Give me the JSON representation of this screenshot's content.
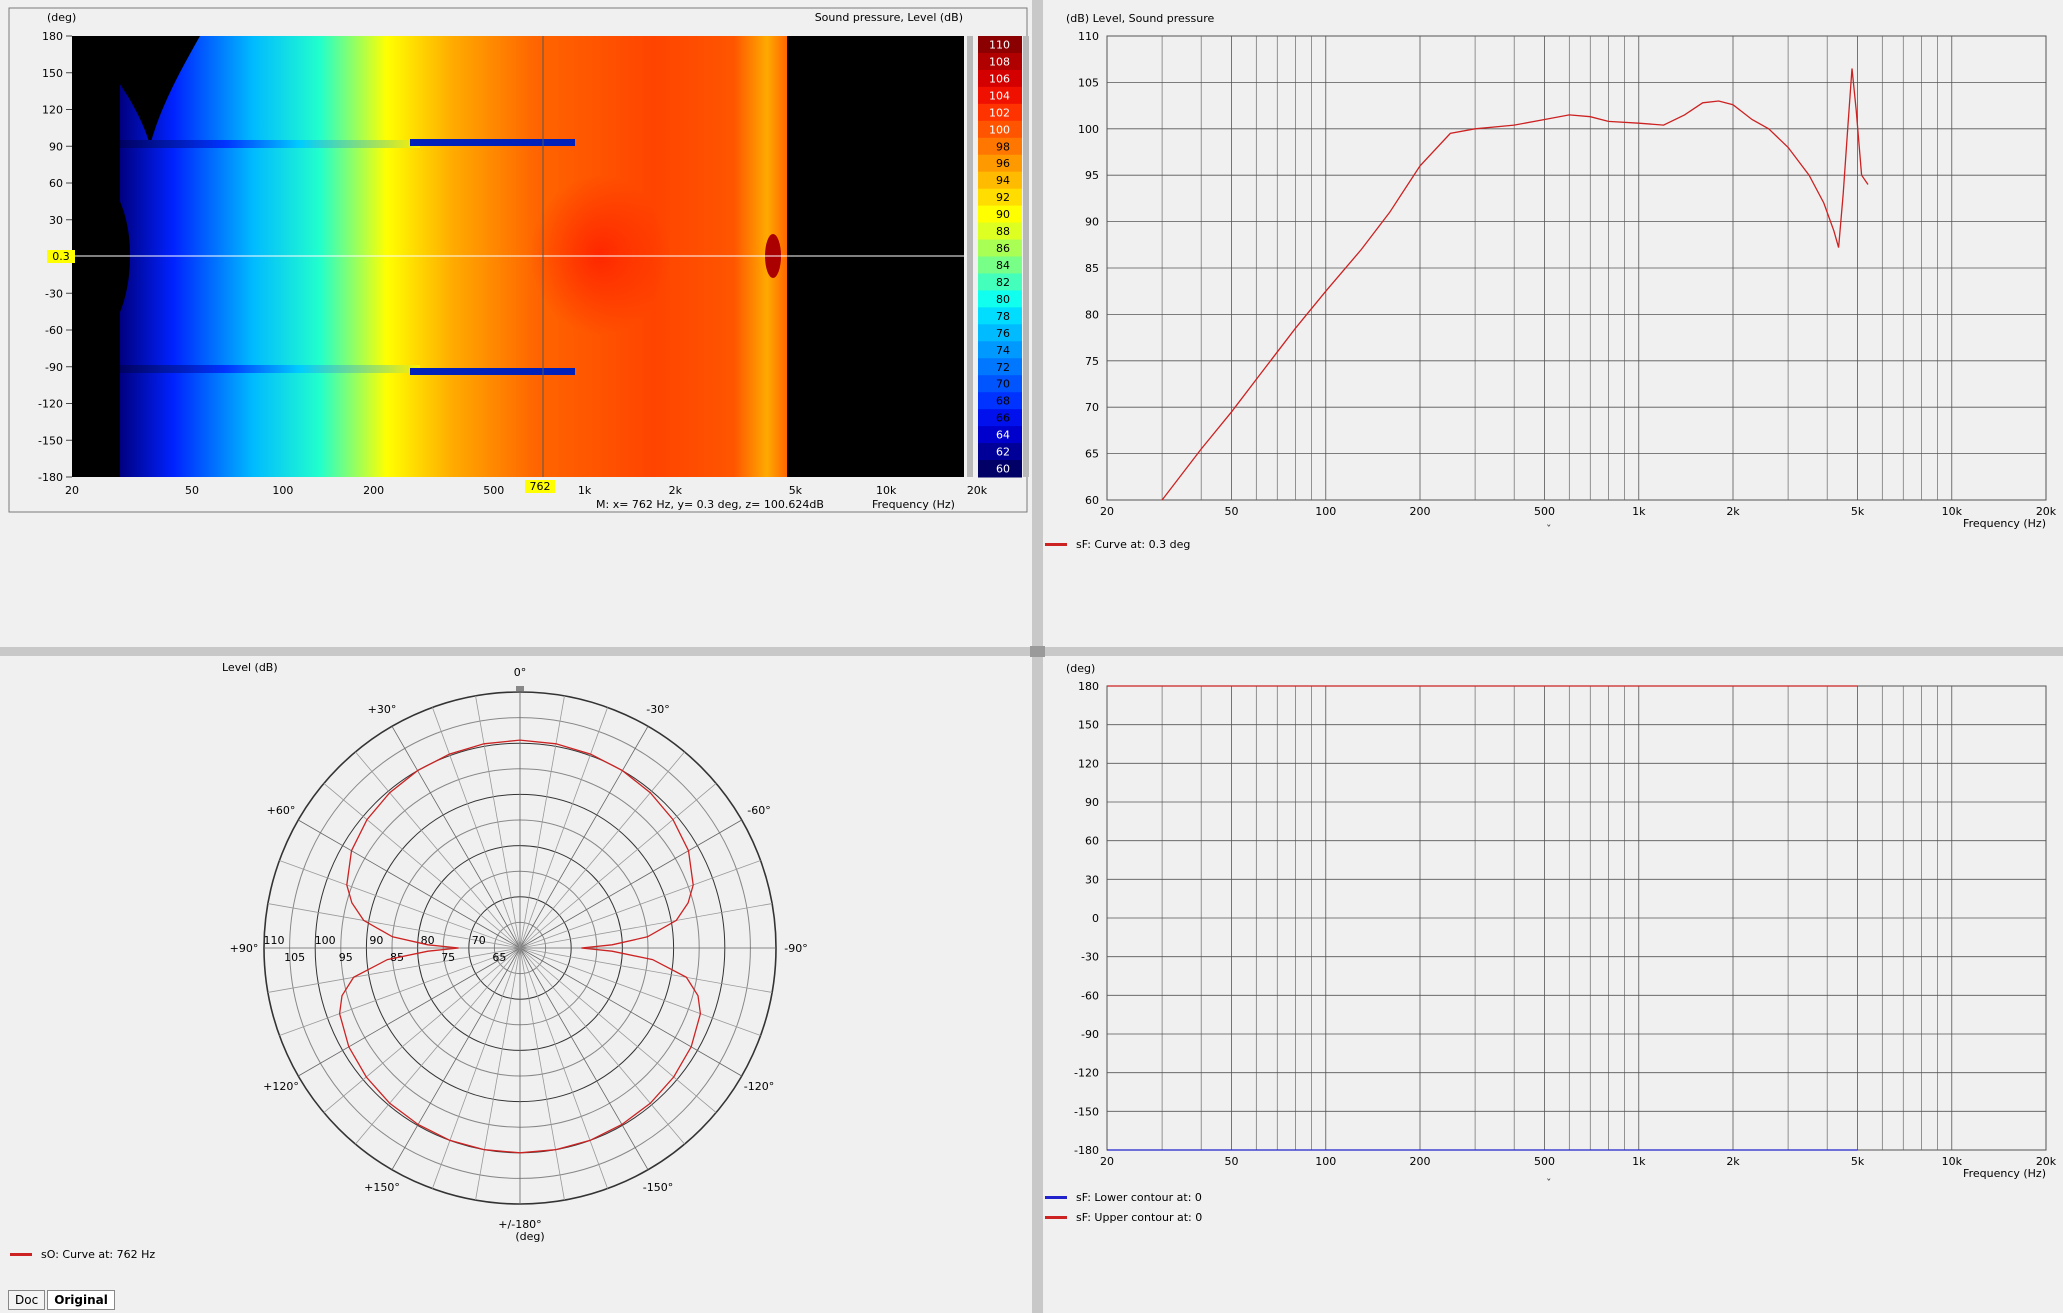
{
  "sonogram": {
    "ylabel": "(deg)",
    "title": "Sound pressure, Level  (dB)",
    "y_ticks": [
      "180",
      "150",
      "120",
      "90",
      "60",
      "30",
      "0",
      "-30",
      "-60",
      "-90",
      "-120",
      "-150",
      "-180"
    ],
    "x_ticks": [
      "20",
      "50",
      "100",
      "200",
      "500",
      "1k",
      "2k",
      "5k",
      "10k",
      "20k"
    ],
    "cursor_y_label": "0.3",
    "cursor_x_label": "762",
    "marker": "M:  x= 762 Hz,  y= 0.3 deg, z= 100.624dB",
    "xlabel": "Frequency  (Hz)",
    "scale_labels": [
      "110",
      "108",
      "106",
      "104",
      "102",
      "100",
      "98",
      "96",
      "94",
      "92",
      "90",
      "88",
      "86",
      "84",
      "82",
      "80",
      "78",
      "76",
      "74",
      "72",
      "70",
      "68",
      "66",
      "64",
      "62",
      "60"
    ],
    "scale_colors": [
      "#8b0000",
      "#b00000",
      "#d40000",
      "#f01000",
      "#ff3300",
      "#ff5500",
      "#ff7700",
      "#ff9900",
      "#ffbb00",
      "#ffdd00",
      "#ffff00",
      "#ddff22",
      "#aaff55",
      "#77ff88",
      "#44ffbb",
      "#11ffee",
      "#00ddff",
      "#00bbff",
      "#0099ff",
      "#0077ff",
      "#0055ff",
      "#0033ff",
      "#0011ee",
      "#0000cc",
      "#000099",
      "#000066"
    ]
  },
  "chart_data": [
    {
      "type": "line",
      "title": "Level, Sound pressure",
      "ylabel": "(dB)",
      "xlabel": "Frequency  (Hz)",
      "x_scale": "log",
      "xlim": [
        20,
        20000
      ],
      "ylim": [
        60,
        110
      ],
      "y_ticks": [
        "110",
        "105",
        "100",
        "95",
        "90",
        "85",
        "80",
        "75",
        "70",
        "65",
        "60"
      ],
      "x_ticks": [
        "20",
        "50",
        "100",
        "200",
        "500",
        "1k",
        "2k",
        "5k",
        "10k",
        "20k"
      ],
      "series": [
        {
          "name": "sF: Curve at: 0.3 deg",
          "color": "#cc2222",
          "points": [
            [
              30,
              60
            ],
            [
              40,
              65.5
            ],
            [
              50,
              69.5
            ],
            [
              60,
              73
            ],
            [
              80,
              78.5
            ],
            [
              100,
              82.5
            ],
            [
              130,
              87
            ],
            [
              160,
              91
            ],
            [
              200,
              96
            ],
            [
              250,
              99.5
            ],
            [
              300,
              100
            ],
            [
              400,
              100.4
            ],
            [
              500,
              101
            ],
            [
              600,
              101.5
            ],
            [
              700,
              101.3
            ],
            [
              800,
              100.8
            ],
            [
              1000,
              100.6
            ],
            [
              1200,
              100.4
            ],
            [
              1400,
              101.5
            ],
            [
              1600,
              102.8
            ],
            [
              1800,
              103
            ],
            [
              2000,
              102.6
            ],
            [
              2300,
              101
            ],
            [
              2600,
              100
            ],
            [
              3000,
              98
            ],
            [
              3500,
              95
            ],
            [
              3900,
              92
            ],
            [
              4200,
              89
            ],
            [
              4350,
              87.2
            ],
            [
              4500,
              93
            ],
            [
              4650,
              100
            ],
            [
              4800,
              106.5
            ],
            [
              4950,
              102
            ],
            [
              5150,
              95
            ],
            [
              5400,
              94
            ]
          ]
        }
      ]
    },
    {
      "type": "line",
      "title": "",
      "ylabel": "(deg)",
      "xlabel": "Frequency  (Hz)",
      "x_scale": "log",
      "xlim": [
        20,
        20000
      ],
      "ylim": [
        -180,
        180
      ],
      "y_ticks": [
        "180",
        "150",
        "120",
        "90",
        "60",
        "30",
        "0",
        "-30",
        "-60",
        "-90",
        "-120",
        "-150",
        "-180"
      ],
      "x_ticks": [
        "20",
        "50",
        "100",
        "200",
        "500",
        "1k",
        "2k",
        "5k",
        "10k",
        "20k"
      ],
      "series": [
        {
          "name": "sF: Lower contour at: 0",
          "color": "#2222cc",
          "points": [
            [
              20,
              -180
            ],
            [
              5000,
              -180
            ]
          ]
        },
        {
          "name": "sF: Upper contour at: 0",
          "color": "#cc2222",
          "points": [
            [
              20,
              180
            ],
            [
              5000,
              180
            ]
          ]
        }
      ]
    },
    {
      "type": "polar",
      "title": "Level  (dB)",
      "unit": "(deg)",
      "rlim": [
        60,
        110
      ],
      "r_ticks": [
        "110",
        "105",
        "100",
        "95",
        "90",
        "85",
        "80",
        "75",
        "70",
        "65"
      ],
      "angle_labels": [
        "0°",
        "-30°",
        "-60°",
        "-90°",
        "-120°",
        "-150°",
        "+/-180°",
        "+150°",
        "+120°",
        "+90°",
        "+60°",
        "+30°"
      ],
      "series": [
        {
          "name": "sO: Curve at: 762 Hz",
          "color": "#cc2222",
          "angle_deg": [
            0,
            10,
            20,
            30,
            40,
            50,
            60,
            70,
            75,
            80,
            85,
            88,
            90,
            92,
            95,
            100,
            105,
            110,
            120,
            130,
            140,
            150,
            160,
            170,
            180,
            190,
            200,
            210,
            220,
            230,
            240,
            250,
            255,
            260,
            265,
            268,
            270,
            272,
            275,
            280,
            285,
            290,
            300,
            310,
            320,
            330,
            340,
            350
          ],
          "level_db": [
            100.6,
            100.5,
            100.3,
            100,
            99.6,
            99,
            98,
            96,
            94,
            91,
            85,
            78,
            72,
            78,
            86,
            93,
            96,
            97.5,
            98.6,
            99.2,
            99.6,
            99.8,
            100,
            100,
            100,
            100,
            100,
            99.8,
            99.6,
            99.2,
            98.6,
            97.5,
            96,
            93,
            86,
            78,
            72,
            78,
            85,
            91,
            94,
            96,
            98,
            99,
            99.6,
            100,
            100.3,
            100.5
          ]
        }
      ]
    }
  ],
  "tabs": [
    "Doc",
    "Original"
  ]
}
